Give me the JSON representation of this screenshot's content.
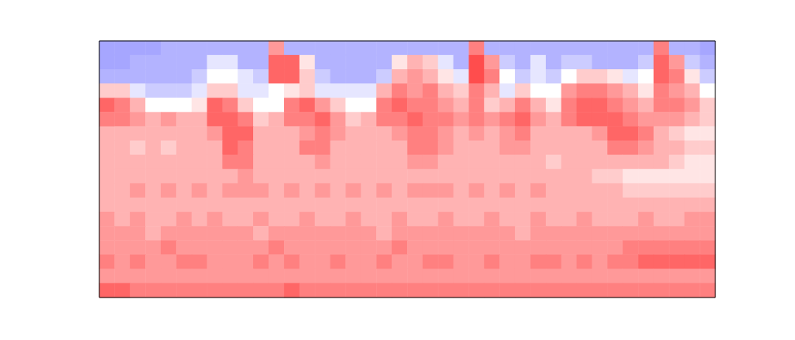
{
  "chart_data": {
    "type": "heatmap",
    "tick_labels": false,
    "grid": false,
    "zlim": [
      -1,
      1
    ],
    "cells": [
      [
        -0.35,
        -0.35,
        -0.35,
        -0.35,
        -0.3,
        -0.3,
        -0.3,
        -0.3,
        -0.3,
        -0.3,
        -0.3,
        0.4,
        -0.3,
        -0.3,
        -0.3,
        -0.3,
        -0.3,
        -0.3,
        -0.3,
        -0.3,
        -0.3,
        -0.3,
        -0.3,
        -0.3,
        0.5,
        -0.3,
        -0.3,
        -0.3,
        -0.3,
        -0.3,
        -0.3,
        -0.3,
        -0.3,
        -0.3,
        -0.3,
        -0.3,
        0.5,
        -0.3,
        -0.3,
        -0.35
      ],
      [
        -0.35,
        -0.35,
        -0.3,
        -0.3,
        -0.3,
        -0.3,
        -0.3,
        -0.1,
        -0.1,
        -0.3,
        -0.3,
        0.6,
        0.6,
        0.1,
        -0.3,
        -0.3,
        -0.3,
        -0.3,
        -0.3,
        0.1,
        0.3,
        0.2,
        -0.1,
        -0.3,
        0.7,
        0.4,
        -0.2,
        -0.3,
        -0.1,
        -0.3,
        -0.2,
        -0.2,
        -0.3,
        -0.3,
        -0.3,
        -0.2,
        0.6,
        0.4,
        -0.2,
        -0.3
      ],
      [
        -0.3,
        -0.3,
        -0.3,
        -0.3,
        -0.3,
        -0.3,
        -0.2,
        0.0,
        0.0,
        -0.1,
        -0.2,
        0.6,
        0.6,
        0.2,
        -0.2,
        -0.3,
        -0.3,
        -0.3,
        -0.2,
        0.3,
        0.4,
        0.3,
        0.1,
        -0.1,
        0.7,
        0.5,
        0.0,
        -0.2,
        -0.1,
        -0.2,
        0.0,
        0.2,
        0.2,
        0.1,
        -0.1,
        0.0,
        0.6,
        0.5,
        0.1,
        -0.2
      ],
      [
        0.2,
        0.2,
        -0.1,
        -0.2,
        -0.2,
        -0.2,
        -0.1,
        0.2,
        0.2,
        -0.1,
        -0.1,
        0.0,
        0.1,
        0.2,
        -0.1,
        -0.1,
        -0.1,
        -0.1,
        0.3,
        0.5,
        0.4,
        0.5,
        0.3,
        0.2,
        0.5,
        0.3,
        -0.1,
        0.2,
        0.0,
        0.0,
        0.4,
        0.5,
        0.5,
        0.4,
        0.3,
        0.1,
        0.5,
        0.4,
        0.3,
        0.0
      ],
      [
        0.6,
        0.5,
        0.3,
        0.0,
        0.0,
        0.0,
        0.1,
        0.6,
        0.5,
        0.2,
        0.0,
        0.0,
        0.5,
        0.6,
        0.4,
        0.2,
        0.0,
        0.0,
        0.5,
        0.6,
        0.5,
        0.5,
        0.4,
        0.3,
        0.5,
        0.2,
        0.3,
        0.5,
        0.3,
        0.1,
        0.5,
        0.6,
        0.6,
        0.5,
        0.4,
        0.3,
        0.5,
        0.5,
        0.4,
        0.2
      ],
      [
        0.5,
        0.5,
        0.4,
        0.3,
        0.4,
        0.3,
        0.3,
        0.6,
        0.6,
        0.5,
        0.2,
        0.3,
        0.5,
        0.5,
        0.6,
        0.4,
        0.2,
        0.3,
        0.5,
        0.5,
        0.6,
        0.5,
        0.5,
        0.4,
        0.5,
        0.4,
        0.5,
        0.6,
        0.4,
        0.3,
        0.5,
        0.6,
        0.6,
        0.6,
        0.5,
        0.4,
        0.4,
        0.4,
        0.3,
        0.2
      ],
      [
        0.3,
        0.3,
        0.3,
        0.3,
        0.3,
        0.3,
        0.3,
        0.4,
        0.6,
        0.6,
        0.3,
        0.3,
        0.3,
        0.4,
        0.5,
        0.4,
        0.3,
        0.3,
        0.3,
        0.4,
        0.5,
        0.5,
        0.4,
        0.3,
        0.4,
        0.3,
        0.4,
        0.5,
        0.3,
        0.3,
        0.3,
        0.3,
        0.4,
        0.6,
        0.6,
        0.5,
        0.3,
        0.2,
        0.1,
        0.1
      ],
      [
        0.3,
        0.3,
        0.2,
        0.3,
        0.2,
        0.3,
        0.3,
        0.3,
        0.6,
        0.5,
        0.3,
        0.3,
        0.3,
        0.5,
        0.5,
        0.3,
        0.3,
        0.3,
        0.3,
        0.3,
        0.5,
        0.5,
        0.4,
        0.3,
        0.3,
        0.3,
        0.4,
        0.4,
        0.3,
        0.3,
        0.3,
        0.3,
        0.3,
        0.5,
        0.5,
        0.4,
        0.3,
        0.3,
        0.2,
        0.2
      ],
      [
        0.3,
        0.3,
        0.3,
        0.3,
        0.3,
        0.3,
        0.3,
        0.3,
        0.5,
        0.5,
        0.3,
        0.3,
        0.3,
        0.3,
        0.4,
        0.3,
        0.3,
        0.3,
        0.3,
        0.3,
        0.4,
        0.4,
        0.3,
        0.3,
        0.3,
        0.3,
        0.3,
        0.3,
        0.3,
        0.2,
        0.3,
        0.3,
        0.3,
        0.3,
        0.3,
        0.3,
        0.3,
        0.2,
        0.1,
        0.1
      ],
      [
        0.3,
        0.3,
        0.3,
        0.3,
        0.3,
        0.3,
        0.3,
        0.3,
        0.3,
        0.4,
        0.3,
        0.3,
        0.3,
        0.3,
        0.3,
        0.3,
        0.3,
        0.3,
        0.3,
        0.3,
        0.3,
        0.3,
        0.3,
        0.3,
        0.3,
        0.3,
        0.3,
        0.3,
        0.3,
        0.3,
        0.3,
        0.3,
        0.2,
        0.2,
        0.1,
        0.1,
        0.1,
        0.1,
        0.1,
        0.1
      ],
      [
        0.3,
        0.3,
        0.4,
        0.3,
        0.4,
        0.3,
        0.4,
        0.3,
        0.4,
        0.4,
        0.4,
        0.3,
        0.4,
        0.3,
        0.4,
        0.3,
        0.4,
        0.3,
        0.4,
        0.3,
        0.4,
        0.4,
        0.4,
        0.3,
        0.4,
        0.3,
        0.4,
        0.3,
        0.4,
        0.3,
        0.3,
        0.3,
        0.3,
        0.3,
        0.2,
        0.2,
        0.2,
        0.2,
        0.2,
        0.2
      ],
      [
        0.3,
        0.3,
        0.3,
        0.3,
        0.3,
        0.3,
        0.3,
        0.3,
        0.3,
        0.3,
        0.3,
        0.3,
        0.3,
        0.3,
        0.3,
        0.3,
        0.3,
        0.3,
        0.3,
        0.3,
        0.3,
        0.3,
        0.3,
        0.3,
        0.3,
        0.3,
        0.3,
        0.3,
        0.3,
        0.3,
        0.3,
        0.3,
        0.3,
        0.3,
        0.3,
        0.3,
        0.3,
        0.3,
        0.3,
        0.3
      ],
      [
        0.4,
        0.3,
        0.4,
        0.3,
        0.3,
        0.4,
        0.3,
        0.4,
        0.3,
        0.3,
        0.4,
        0.3,
        0.3,
        0.4,
        0.3,
        0.3,
        0.4,
        0.3,
        0.3,
        0.4,
        0.3,
        0.3,
        0.4,
        0.3,
        0.3,
        0.4,
        0.3,
        0.3,
        0.4,
        0.3,
        0.3,
        0.4,
        0.3,
        0.3,
        0.3,
        0.4,
        0.3,
        0.3,
        0.4,
        0.4
      ],
      [
        0.4,
        0.4,
        0.4,
        0.3,
        0.4,
        0.4,
        0.4,
        0.4,
        0.4,
        0.4,
        0.3,
        0.4,
        0.4,
        0.4,
        0.4,
        0.4,
        0.4,
        0.4,
        0.3,
        0.4,
        0.4,
        0.4,
        0.4,
        0.4,
        0.4,
        0.4,
        0.4,
        0.3,
        0.4,
        0.4,
        0.4,
        0.4,
        0.4,
        0.4,
        0.4,
        0.4,
        0.4,
        0.4,
        0.4,
        0.4
      ],
      [
        0.4,
        0.4,
        0.4,
        0.4,
        0.5,
        0.4,
        0.4,
        0.4,
        0.4,
        0.4,
        0.4,
        0.5,
        0.4,
        0.4,
        0.4,
        0.4,
        0.4,
        0.4,
        0.4,
        0.5,
        0.4,
        0.4,
        0.4,
        0.4,
        0.4,
        0.4,
        0.4,
        0.4,
        0.4,
        0.4,
        0.4,
        0.4,
        0.4,
        0.4,
        0.5,
        0.5,
        0.5,
        0.5,
        0.5,
        0.5
      ],
      [
        0.5,
        0.4,
        0.5,
        0.4,
        0.4,
        0.5,
        0.5,
        0.4,
        0.4,
        0.4,
        0.5,
        0.4,
        0.5,
        0.4,
        0.4,
        0.5,
        0.4,
        0.4,
        0.5,
        0.4,
        0.4,
        0.5,
        0.5,
        0.4,
        0.4,
        0.5,
        0.4,
        0.4,
        0.5,
        0.5,
        0.4,
        0.5,
        0.4,
        0.5,
        0.5,
        0.6,
        0.6,
        0.6,
        0.6,
        0.6
      ],
      [
        0.4,
        0.4,
        0.4,
        0.4,
        0.4,
        0.4,
        0.4,
        0.4,
        0.4,
        0.4,
        0.4,
        0.4,
        0.4,
        0.4,
        0.4,
        0.4,
        0.4,
        0.4,
        0.4,
        0.4,
        0.4,
        0.4,
        0.4,
        0.4,
        0.4,
        0.4,
        0.4,
        0.4,
        0.4,
        0.4,
        0.4,
        0.4,
        0.4,
        0.4,
        0.4,
        0.4,
        0.4,
        0.4,
        0.4,
        0.4
      ],
      [
        0.6,
        0.6,
        0.5,
        0.5,
        0.5,
        0.5,
        0.5,
        0.5,
        0.5,
        0.5,
        0.5,
        0.5,
        0.6,
        0.5,
        0.5,
        0.5,
        0.5,
        0.5,
        0.5,
        0.5,
        0.5,
        0.5,
        0.5,
        0.5,
        0.5,
        0.5,
        0.5,
        0.5,
        0.5,
        0.5,
        0.5,
        0.5,
        0.5,
        0.5,
        0.5,
        0.5,
        0.5,
        0.5,
        0.5,
        0.5
      ]
    ]
  }
}
